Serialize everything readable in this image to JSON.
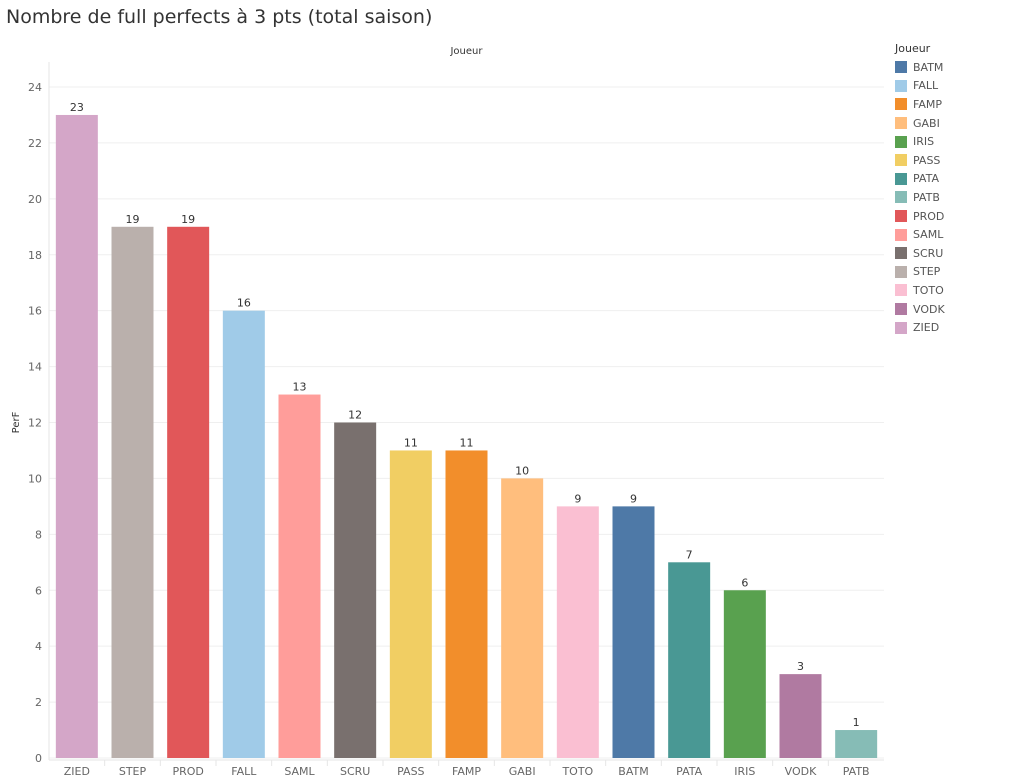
{
  "chart_data": {
    "type": "bar",
    "title": "Nombre de full perfects à 3 pts (total saison)",
    "column_header": "Joueur",
    "xlabel": "",
    "ylabel": "PerF",
    "ylim": [
      0,
      24
    ],
    "yticks": [
      0,
      2,
      4,
      6,
      8,
      10,
      12,
      14,
      16,
      18,
      20,
      22,
      24
    ],
    "grid": true,
    "categories": [
      "ZIED",
      "STEP",
      "PROD",
      "FALL",
      "SAML",
      "SCRU",
      "PASS",
      "FAMP",
      "GABI",
      "TOTO",
      "BATM",
      "PATA",
      "IRIS",
      "VODK",
      "PATB"
    ],
    "values": [
      23,
      19,
      19,
      16,
      13,
      12,
      11,
      11,
      10,
      9,
      9,
      7,
      6,
      3,
      1
    ],
    "legend": {
      "title": "Joueur",
      "placement": "right",
      "entries": [
        "BATM",
        "FALL",
        "FAMP",
        "GABI",
        "IRIS",
        "PASS",
        "PATA",
        "PATB",
        "PROD",
        "SAML",
        "SCRU",
        "STEP",
        "TOTO",
        "VODK",
        "ZIED"
      ]
    },
    "colors": {
      "BATM": "#4e79a7",
      "FALL": "#a0cbe8",
      "FAMP": "#f28e2b",
      "GABI": "#ffbe7d",
      "IRIS": "#59a14f",
      "PASS": "#f1ce63",
      "PATA": "#499894",
      "PATB": "#86bcb6",
      "PROD": "#e15759",
      "SAML": "#ff9d9a",
      "SCRU": "#79706e",
      "STEP": "#bab0ac",
      "TOTO": "#fabfd2",
      "VODK": "#b07aa1",
      "ZIED": "#d4a6c8"
    }
  }
}
